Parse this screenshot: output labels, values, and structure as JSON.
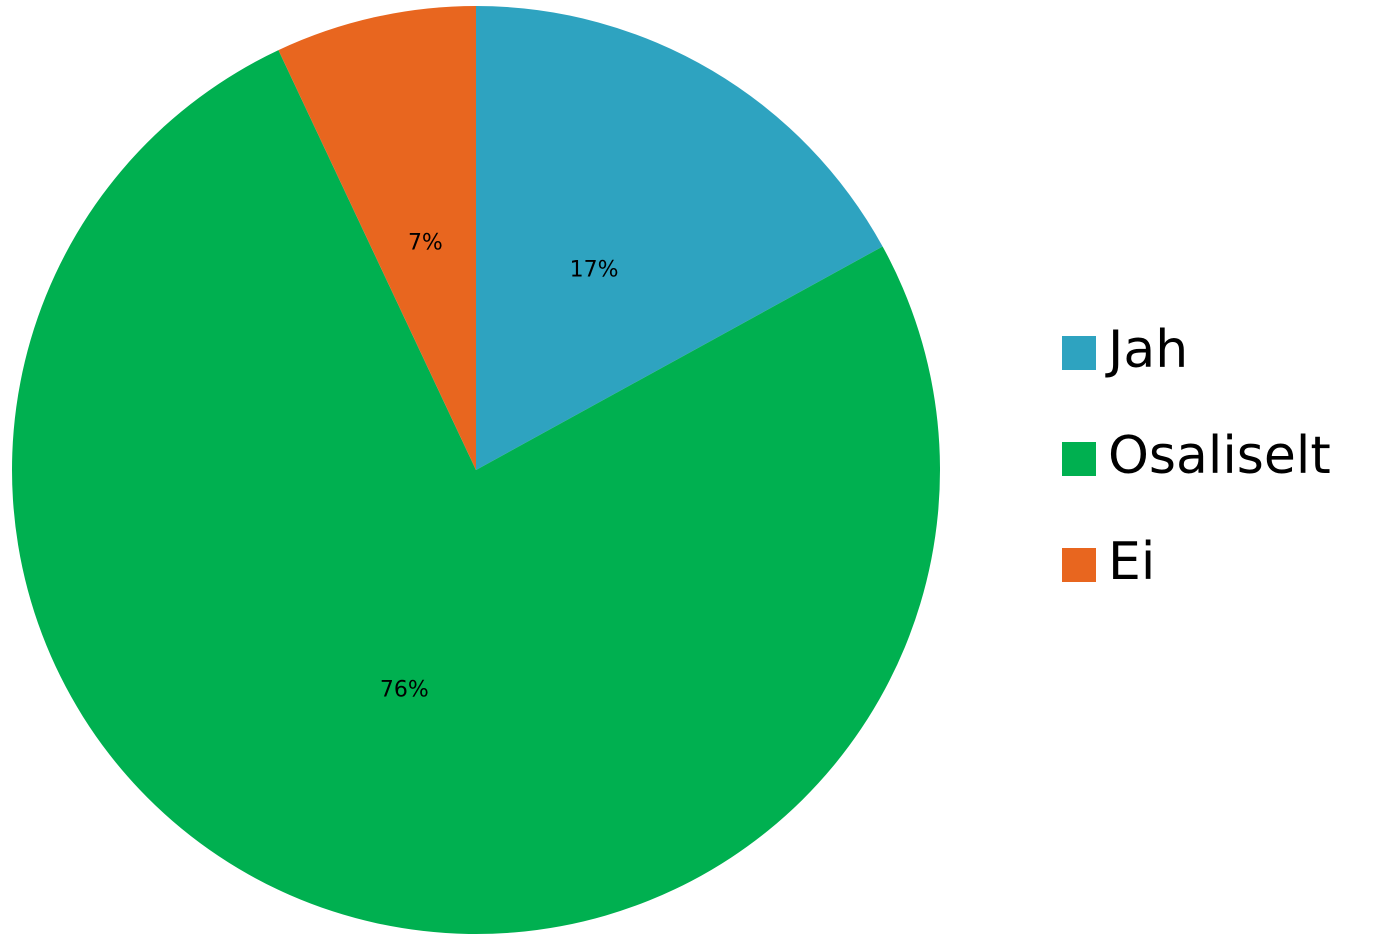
{
  "chart_data": {
    "type": "pie",
    "categories": [
      "Jah",
      "Osaliselt",
      "Ei"
    ],
    "values": [
      17,
      76,
      7
    ],
    "data_labels": [
      "17%",
      "76%",
      "7%"
    ],
    "colors": [
      "#2ea3c0",
      "#00b050",
      "#e8661f"
    ],
    "start_angle_deg": 0,
    "direction": "clockwise",
    "legend": {
      "position": "right",
      "entries": [
        "Jah",
        "Osaliselt",
        "Ei"
      ]
    }
  }
}
